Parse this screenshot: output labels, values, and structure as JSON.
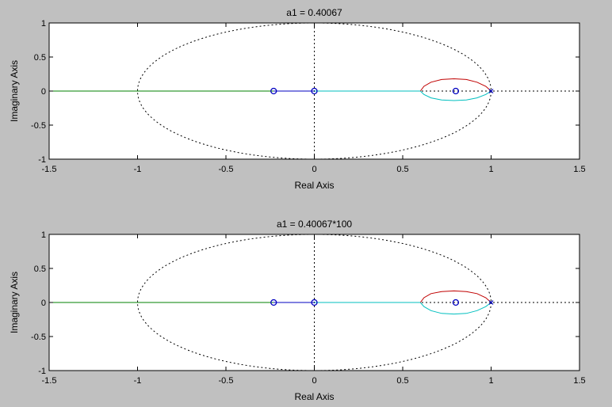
{
  "window": {
    "background": "#c0c0c0"
  },
  "chart_data": [
    {
      "type": "line",
      "title": "a1 = 0.40067",
      "xlabel": "Real Axis",
      "ylabel": "Imaginary Axis",
      "xlim": [
        -1.5,
        1.5
      ],
      "ylim": [
        -1,
        1
      ],
      "xticks": [
        -1.5,
        -1,
        -0.5,
        0,
        0.5,
        1,
        1.5
      ],
      "xtick_labels": [
        "-1.5",
        "-1",
        "-0.5",
        "0",
        "0.5",
        "1",
        "1.5"
      ],
      "yticks": [
        -1,
        -0.5,
        0,
        0.5,
        1
      ],
      "ytick_labels": [
        "-1",
        "-0.5",
        "0",
        "0.5",
        "1"
      ],
      "grid": false,
      "legend": "none",
      "unit_circle": {
        "style": "dotted",
        "color": "#000000"
      },
      "zero_axes": {
        "style": "dotted",
        "color": "#000000"
      },
      "series": [
        {
          "color": "#008000",
          "x": [
            -1.5,
            -0.23
          ],
          "y": [
            0,
            0
          ]
        },
        {
          "color": "#0000c0",
          "x": [
            -0.23,
            0.0
          ],
          "y": [
            0,
            0
          ]
        },
        {
          "color": "#00bfbf",
          "x": [
            0.0,
            0.6
          ],
          "y": [
            0,
            0
          ]
        },
        {
          "color": "#c00000",
          "x": [
            0.6,
            0.62,
            0.66,
            0.72,
            0.79,
            0.86,
            0.92,
            0.97,
            1.0
          ],
          "y": [
            0,
            0.07,
            0.13,
            0.17,
            0.18,
            0.17,
            0.13,
            0.07,
            0
          ]
        },
        {
          "color": "#00bfbf",
          "x": [
            0.6,
            0.62,
            0.66,
            0.72,
            0.79,
            0.86,
            0.92,
            0.97,
            1.0
          ],
          "y": [
            0,
            -0.05,
            -0.1,
            -0.13,
            -0.14,
            -0.13,
            -0.1,
            -0.05,
            0
          ]
        }
      ],
      "zeros": [
        [
          -0.23,
          0
        ],
        [
          0.0,
          0
        ],
        [
          0.8,
          0
        ]
      ],
      "poles": [
        [
          1.0,
          0
        ]
      ],
      "marker_color": "#0000c0"
    },
    {
      "type": "line",
      "title": "a1 = 0.40067*100",
      "xlabel": "Real Axis",
      "ylabel": "Imaginary Axis",
      "xlim": [
        -1.5,
        1.5
      ],
      "ylim": [
        -1,
        1
      ],
      "xticks": [
        -1.5,
        -1,
        -0.5,
        0,
        0.5,
        1,
        1.5
      ],
      "xtick_labels": [
        "-1.5",
        "-1",
        "-0.5",
        "0",
        "0.5",
        "1",
        "1.5"
      ],
      "yticks": [
        -1,
        -0.5,
        0,
        0.5,
        1
      ],
      "ytick_labels": [
        "-1",
        "-0.5",
        "0",
        "0.5",
        "1"
      ],
      "grid": false,
      "legend": "none",
      "unit_circle": {
        "style": "dotted",
        "color": "#000000"
      },
      "zero_axes": {
        "style": "dotted",
        "color": "#000000"
      },
      "series": [
        {
          "color": "#008000",
          "x": [
            -1.5,
            -0.23
          ],
          "y": [
            0,
            0
          ]
        },
        {
          "color": "#0000c0",
          "x": [
            -0.23,
            0.0
          ],
          "y": [
            0,
            0
          ]
        },
        {
          "color": "#00bfbf",
          "x": [
            0.0,
            0.6
          ],
          "y": [
            0,
            0
          ]
        },
        {
          "color": "#c00000",
          "x": [
            0.6,
            0.62,
            0.66,
            0.72,
            0.79,
            0.86,
            0.92,
            0.97,
            1.0
          ],
          "y": [
            0,
            0.07,
            0.13,
            0.16,
            0.17,
            0.16,
            0.13,
            0.07,
            0
          ]
        },
        {
          "color": "#00bfbf",
          "x": [
            0.6,
            0.62,
            0.66,
            0.72,
            0.79,
            0.86,
            0.92,
            0.97,
            1.0
          ],
          "y": [
            0,
            -0.06,
            -0.12,
            -0.16,
            -0.17,
            -0.16,
            -0.12,
            -0.06,
            0
          ]
        }
      ],
      "zeros": [
        [
          -0.23,
          0
        ],
        [
          0.0,
          0
        ],
        [
          0.8,
          0
        ]
      ],
      "poles": [
        [
          1.0,
          0
        ]
      ],
      "marker_color": "#0000c0"
    }
  ]
}
